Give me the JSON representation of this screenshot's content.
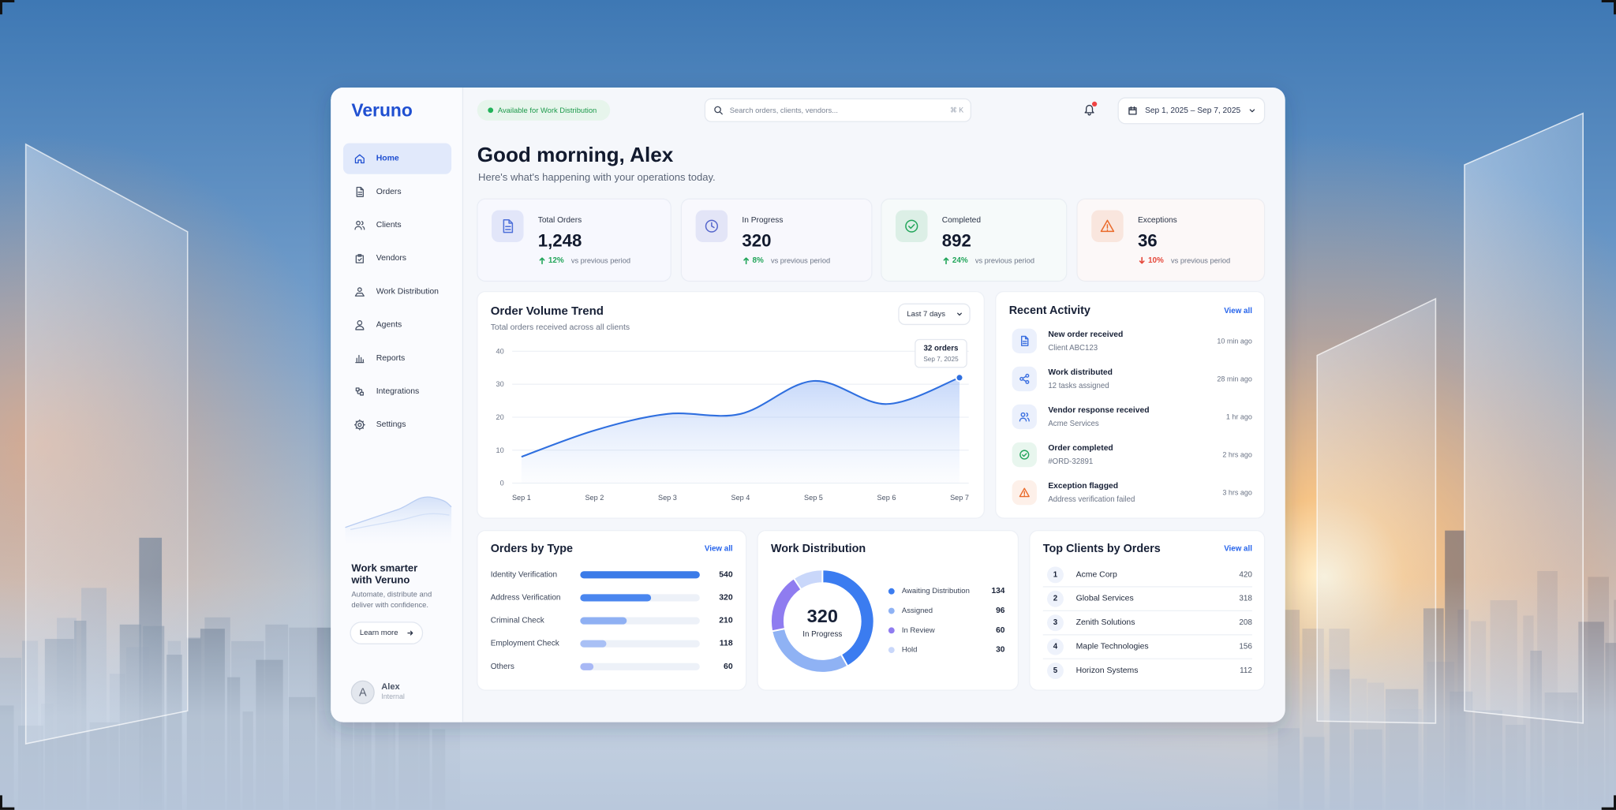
{
  "brand": "Veruno",
  "topbar": {
    "status": "Available for Work Distribution",
    "search_placeholder": "Search orders, clients, vendors...",
    "search_shortcut": "⌘ K",
    "date_range": "Sep 1, 2025 – Sep 7, 2025"
  },
  "nav": {
    "items": [
      "Home",
      "Orders",
      "Clients",
      "Vendors",
      "Work Distribution",
      "Agents",
      "Reports",
      "Integrations",
      "Settings"
    ],
    "active": 0
  },
  "promo": {
    "title": "Work smarter with Veruno",
    "text": "Automate, distribute and deliver with confidence.",
    "button": "Learn more"
  },
  "user": {
    "initial": "A",
    "name": "Alex",
    "role": "Internal"
  },
  "greeting": {
    "title": "Good morning, Alex",
    "subtitle": "Here's what's happening with your operations today."
  },
  "kpis": [
    {
      "label": "Total Orders",
      "value": "1,248",
      "change": "12%",
      "trend": "up",
      "note": "vs previous period",
      "color": "#4d6fd9"
    },
    {
      "label": "In Progress",
      "value": "320",
      "change": "8%",
      "trend": "up",
      "note": "vs previous period",
      "color": "#5566cc"
    },
    {
      "label": "Completed",
      "value": "892",
      "change": "24%",
      "trend": "up",
      "note": "vs previous period",
      "color": "#22a55a"
    },
    {
      "label": "Exceptions",
      "value": "36",
      "change": "10%",
      "trend": "down",
      "note": "vs previous period",
      "color": "#ea6a2a"
    }
  ],
  "recent_activity": {
    "title": "Recent Activity",
    "link": "View all",
    "items": [
      {
        "title": "New order received",
        "detail": "Client ABC123",
        "time": "10 min ago"
      },
      {
        "title": "Work distributed",
        "detail": "12 tasks assigned",
        "time": "28 min ago"
      },
      {
        "title": "Vendor response received",
        "detail": "Acme Services",
        "time": "1 hr ago"
      },
      {
        "title": "Order completed",
        "detail": "#ORD-32891",
        "time": "2 hrs ago"
      },
      {
        "title": "Exception flagged",
        "detail": "Address verification failed",
        "time": "3 hrs ago"
      }
    ]
  },
  "top_clients": {
    "title": "Top Clients by Orders",
    "link": "View all",
    "rows": [
      [
        1,
        "Acme Corp",
        420
      ],
      [
        2,
        "Global Services",
        318
      ],
      [
        3,
        "Zenith Solutions",
        208
      ],
      [
        4,
        "Maple Technologies",
        156
      ],
      [
        5,
        "Horizon Systems",
        112
      ]
    ]
  },
  "chart_data": [
    {
      "type": "line",
      "title": "Order Volume Trend",
      "subtitle": "Total orders received across all clients",
      "filter": "Last 7 days",
      "categories": [
        "Sep 1",
        "Sep 2",
        "Sep 3",
        "Sep 4",
        "Sep 5",
        "Sep 6",
        "Sep 7"
      ],
      "values": [
        8,
        16,
        21,
        21,
        31,
        24,
        32
      ],
      "color": "#2f6fdf",
      "ylim": [
        0,
        40
      ],
      "yticks": [
        0,
        10,
        20,
        30,
        40
      ],
      "grid": true,
      "tooltip": {
        "label": "32 orders",
        "date": "Sep 7, 2025"
      }
    },
    {
      "type": "bar",
      "orientation": "horizontal",
      "title": "Orders by Type",
      "link": "View all",
      "categories": [
        "Identity Verification",
        "Address Verification",
        "Criminal Check",
        "Employment Check",
        "Others"
      ],
      "values": [
        540,
        320,
        210,
        118,
        60
      ],
      "colors": [
        "#3b7be8",
        "#4a86ef",
        "#8fb0f3",
        "#a9c0f5",
        "#a8b8f5"
      ],
      "xlim": [
        0,
        540
      ]
    },
    {
      "type": "pie",
      "donut": true,
      "title": "Work Distribution",
      "center_value": 320,
      "center_label": "In Progress",
      "categories": [
        "Awaiting Distribution",
        "Assigned",
        "In Review",
        "Hold"
      ],
      "values": [
        134,
        96,
        60,
        30
      ],
      "colors": [
        "#3b7cf0",
        "#8fb2f4",
        "#8f7cf0",
        "#c9d7fa"
      ]
    }
  ]
}
